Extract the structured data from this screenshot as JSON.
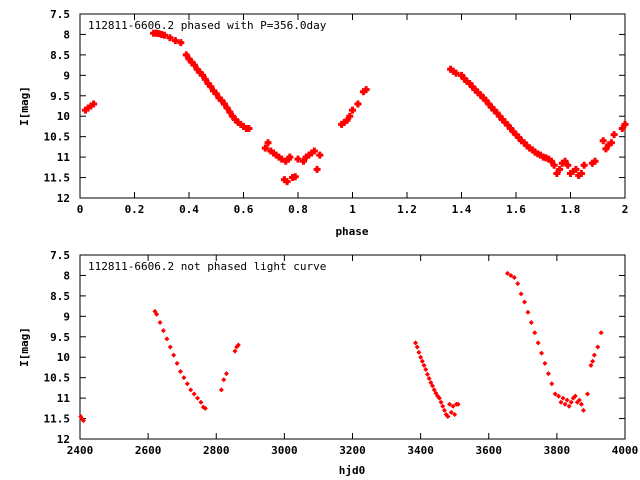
{
  "colors": {
    "points": "#ff0000",
    "axes": "#000000",
    "background": "#ffffff"
  },
  "chart_data": [
    {
      "type": "scatter",
      "title": "112811-6606.2 phased with P=356.0day",
      "xlabel": "phase",
      "ylabel": "I[mag]",
      "xlim": [
        0,
        2
      ],
      "ylim": [
        7.5,
        12
      ],
      "y_inverted": true,
      "grid": false,
      "legend": "none",
      "x_ticks": [
        0,
        0.2,
        0.4,
        0.6,
        0.8,
        1,
        1.2,
        1.4,
        1.6,
        1.8,
        2
      ],
      "x_tick_labels": [
        "0",
        "0.2",
        "0.4",
        "0.6",
        "0.8",
        "1",
        "1.2",
        "1.4",
        "1.6",
        "1.8",
        "2"
      ],
      "y_ticks": [
        7.5,
        8,
        8.5,
        9,
        9.5,
        10,
        10.5,
        11,
        11.5,
        12
      ],
      "y_tick_labels": [
        "7.5",
        "8",
        "8.5",
        "9",
        "9.5",
        "10",
        "10.5",
        "11",
        "11.5",
        "12"
      ],
      "series": [
        {
          "x": [
            0.02,
            0.03,
            0.04,
            0.05,
            0.27,
            0.28,
            0.29,
            0.3,
            0.31,
            0.33,
            0.35,
            0.37,
            0.39,
            0.4,
            0.41,
            0.42,
            0.43,
            0.44,
            0.45,
            0.46,
            0.47,
            0.48,
            0.49,
            0.5,
            0.51,
            0.52,
            0.53,
            0.54,
            0.55,
            0.56,
            0.57,
            0.58,
            0.59,
            0.6,
            0.61,
            0.62,
            0.68,
            0.69,
            0.7,
            0.71,
            0.72,
            0.73,
            0.74,
            0.75,
            0.755,
            0.76,
            0.765,
            0.77,
            0.78,
            0.79,
            0.8,
            0.82,
            0.83,
            0.84,
            0.85,
            0.86,
            0.87,
            0.88,
            0.96,
            0.97,
            0.98,
            0.99,
            1.0,
            1.02,
            1.04,
            1.05,
            1.36,
            1.37,
            1.38,
            1.4,
            1.41,
            1.42,
            1.43,
            1.44,
            1.45,
            1.46,
            1.47,
            1.48,
            1.49,
            1.5,
            1.51,
            1.52,
            1.53,
            1.54,
            1.55,
            1.56,
            1.57,
            1.58,
            1.59,
            1.6,
            1.61,
            1.62,
            1.63,
            1.64,
            1.65,
            1.66,
            1.67,
            1.68,
            1.69,
            1.7,
            1.71,
            1.72,
            1.73,
            1.74,
            1.75,
            1.76,
            1.77,
            1.78,
            1.79,
            1.8,
            1.81,
            1.82,
            1.83,
            1.84,
            1.85,
            1.88,
            1.89,
            1.92,
            1.93,
            1.94,
            1.95,
            1.96,
            1.99,
            2.0
          ],
          "y": [
            9.85,
            9.8,
            9.75,
            9.7,
            7.97,
            7.97,
            7.98,
            8.0,
            8.02,
            8.08,
            8.15,
            8.2,
            8.5,
            8.6,
            8.68,
            8.75,
            8.85,
            8.93,
            9.0,
            9.1,
            9.2,
            9.28,
            9.38,
            9.45,
            9.55,
            9.62,
            9.7,
            9.8,
            9.9,
            10.0,
            10.08,
            10.15,
            10.2,
            10.25,
            10.3,
            10.3,
            10.78,
            10.65,
            10.85,
            10.9,
            10.95,
            11.0,
            11.05,
            11.55,
            11.1,
            11.6,
            11.05,
            11.0,
            11.5,
            11.48,
            11.05,
            11.1,
            11.0,
            10.95,
            10.9,
            10.85,
            11.3,
            10.95,
            10.2,
            10.15,
            10.1,
            10.0,
            9.85,
            9.7,
            9.4,
            9.35,
            8.85,
            8.9,
            8.95,
            9.0,
            9.08,
            9.15,
            9.2,
            9.28,
            9.35,
            9.42,
            9.48,
            9.55,
            9.62,
            9.7,
            9.78,
            9.85,
            9.92,
            10.0,
            10.08,
            10.15,
            10.22,
            10.3,
            10.38,
            10.45,
            10.52,
            10.6,
            10.65,
            10.72,
            10.78,
            10.82,
            10.88,
            10.92,
            10.95,
            11.0,
            11.02,
            11.05,
            11.1,
            11.2,
            11.4,
            11.3,
            11.15,
            11.1,
            11.2,
            11.4,
            11.35,
            11.3,
            11.45,
            11.4,
            11.2,
            11.15,
            11.1,
            10.6,
            10.8,
            10.7,
            10.65,
            10.45,
            10.3,
            10.2
          ]
        }
      ]
    },
    {
      "type": "scatter",
      "title": "112811-6606.2 not phased light curve",
      "xlabel": "hjd0",
      "ylabel": "I[mag]",
      "xlim": [
        2400,
        4000
      ],
      "ylim": [
        7.5,
        12
      ],
      "y_inverted": true,
      "grid": false,
      "legend": "none",
      "x_ticks": [
        2400,
        2600,
        2800,
        3000,
        3200,
        3400,
        3600,
        3800,
        4000
      ],
      "x_tick_labels": [
        "2400",
        "2600",
        "2800",
        "3000",
        "3200",
        "3400",
        "3600",
        "3800",
        "4000"
      ],
      "y_ticks": [
        7.5,
        8,
        8.5,
        9,
        9.5,
        10,
        10.5,
        11,
        11.5,
        12
      ],
      "y_tick_labels": [
        "7.5",
        "8",
        "8.5",
        "9",
        "9.5",
        "10",
        "10.5",
        "11",
        "11.5",
        "12"
      ],
      "series": [
        {
          "x": [
            2402,
            2405,
            2410,
            2620,
            2625,
            2635,
            2645,
            2655,
            2665,
            2675,
            2685,
            2695,
            2705,
            2715,
            2725,
            2735,
            2745,
            2755,
            2762,
            2768,
            2815,
            2822,
            2830,
            2855,
            2860,
            2865,
            3385,
            3390,
            3395,
            3400,
            3405,
            3410,
            3415,
            3420,
            3425,
            3430,
            3435,
            3440,
            3445,
            3450,
            3455,
            3460,
            3465,
            3470,
            3475,
            3480,
            3485,
            3490,
            3495,
            3500,
            3505,
            3510,
            3655,
            3665,
            3675,
            3685,
            3695,
            3705,
            3715,
            3725,
            3735,
            3745,
            3755,
            3765,
            3775,
            3785,
            3795,
            3805,
            3812,
            3818,
            3824,
            3830,
            3836,
            3842,
            3848,
            3854,
            3860,
            3866,
            3872,
            3878,
            3890,
            3900,
            3905,
            3910,
            3920,
            3930
          ],
          "y": [
            11.45,
            11.5,
            11.55,
            8.88,
            8.95,
            9.15,
            9.35,
            9.55,
            9.75,
            9.95,
            10.15,
            10.35,
            10.5,
            10.65,
            10.8,
            10.9,
            11.0,
            11.1,
            11.22,
            11.25,
            10.8,
            10.55,
            10.4,
            9.85,
            9.75,
            9.7,
            9.65,
            9.75,
            9.88,
            10.0,
            10.1,
            10.2,
            10.3,
            10.42,
            10.52,
            10.62,
            10.7,
            10.8,
            10.88,
            10.95,
            11.0,
            11.1,
            11.2,
            11.3,
            11.4,
            11.45,
            11.15,
            11.35,
            11.2,
            11.4,
            11.15,
            11.15,
            7.95,
            8.0,
            8.05,
            8.2,
            8.45,
            8.65,
            8.9,
            9.15,
            9.4,
            9.65,
            9.9,
            10.15,
            10.4,
            10.65,
            10.9,
            10.95,
            11.1,
            11.0,
            11.15,
            11.05,
            11.2,
            11.1,
            11.0,
            10.95,
            11.1,
            11.05,
            11.15,
            11.3,
            10.9,
            10.2,
            10.1,
            9.95,
            9.75,
            9.4
          ]
        }
      ]
    }
  ]
}
